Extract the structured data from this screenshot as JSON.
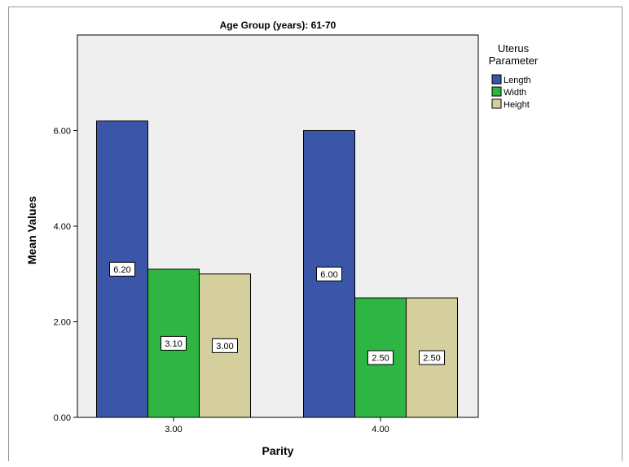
{
  "chart_data": {
    "type": "bar",
    "title": "Age Group (years): 61-70",
    "xlabel": "Parity",
    "ylabel": "Mean Values",
    "categories": [
      "3.00",
      "4.00"
    ],
    "series": [
      {
        "name": "Length",
        "values": [
          6.2,
          6.0
        ],
        "color": "#3b55a8",
        "labels": [
          "6.20",
          "6.00"
        ]
      },
      {
        "name": "Width",
        "values": [
          3.1,
          2.5
        ],
        "color": "#2fb543",
        "labels": [
          "3.10",
          "2.50"
        ]
      },
      {
        "name": "Height",
        "values": [
          3.0,
          2.5
        ],
        "color": "#d5cf9d",
        "labels": [
          "3.00",
          "2.50"
        ]
      }
    ],
    "ylim": [
      0,
      8
    ],
    "yticks": [
      "0.00",
      "2.00",
      "4.00",
      "6.00"
    ],
    "legend": {
      "title_line1": "Uterus",
      "title_line2": "Parameter",
      "placement": "right"
    },
    "plot_background": "#efefef",
    "grid": false
  }
}
